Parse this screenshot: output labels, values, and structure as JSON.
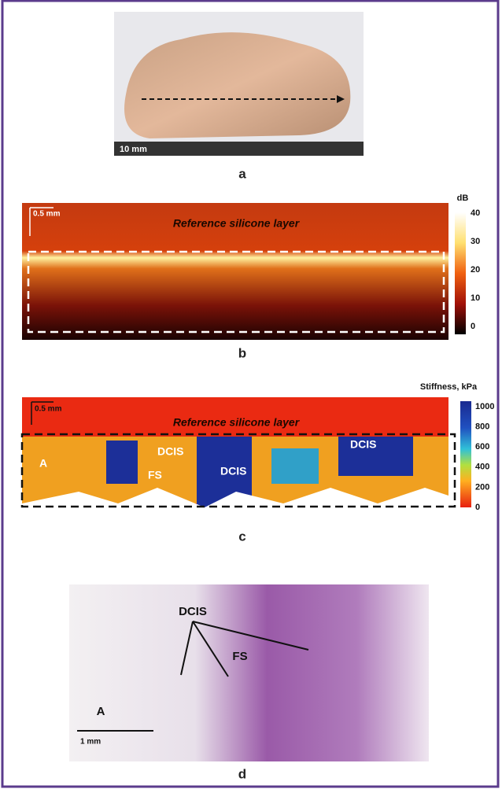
{
  "panel_a": {
    "scale_bar": "10 mm",
    "label": "a"
  },
  "panel_b": {
    "scale_bar": "0.5 mm",
    "region": "Reference silicone layer",
    "colorbar_title": "dB",
    "colorbar_ticks": [
      "40",
      "30",
      "20",
      "10",
      "0"
    ],
    "label": "b"
  },
  "panel_c": {
    "scale_bar": "0.5 mm",
    "region": "Reference silicone layer",
    "colorbar_title": "Stiffness, kPa",
    "colorbar_ticks": [
      "1000",
      "800",
      "600",
      "400",
      "200",
      "0"
    ],
    "annotations": [
      "A",
      "DCIS",
      "FS",
      "DCIS",
      "DCIS"
    ],
    "label": "c"
  },
  "panel_d": {
    "annotations": [
      "DCIS",
      "FS",
      "A"
    ],
    "scale_bar": "1 mm",
    "label": "d"
  }
}
